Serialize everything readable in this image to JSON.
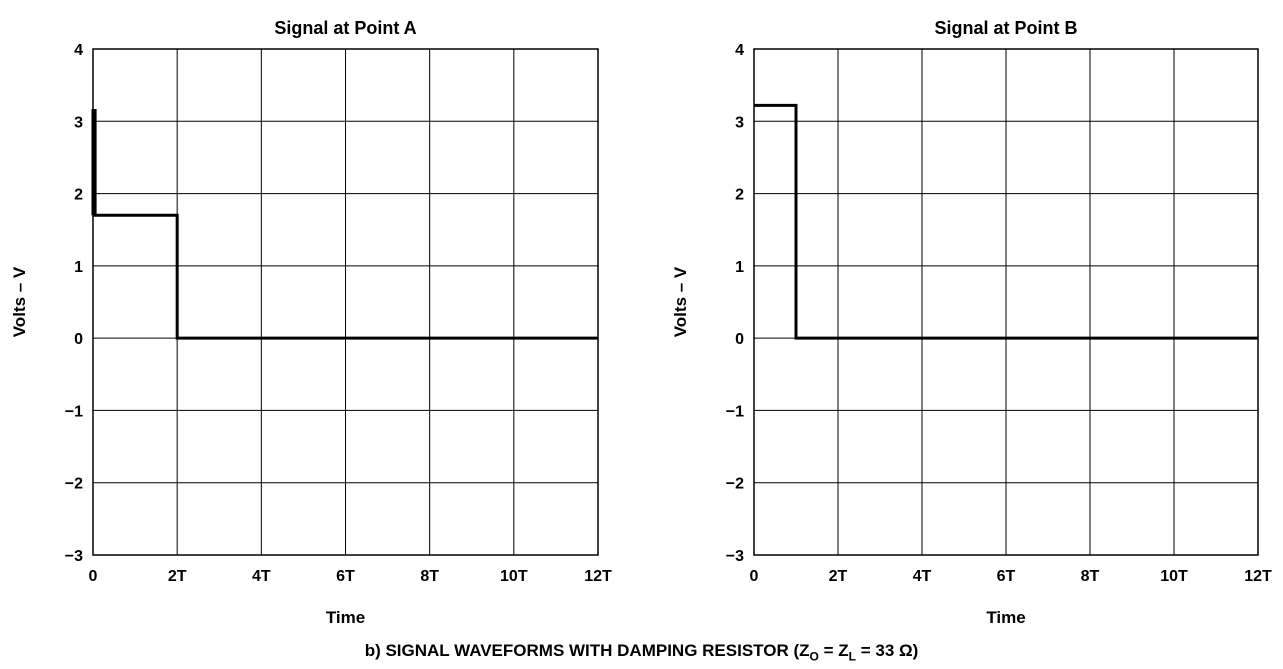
{
  "figure": {
    "caption_prefix": "b) SIGNAL WAVEFORMS WITH DAMPING RESISTOR (Z",
    "caption_sub1": "O",
    "caption_mid": " = Z",
    "caption_sub2": "L",
    "caption_suffix": " = 33 Ω)"
  },
  "chart_data": [
    {
      "type": "line",
      "title": "Signal at Point A",
      "xlabel": "Time",
      "ylabel": "Volts – V",
      "xlim": [
        0,
        12
      ],
      "ylim": [
        -3,
        4
      ],
      "x_ticks": [
        0,
        2,
        4,
        6,
        8,
        10,
        12
      ],
      "x_tick_labels": [
        "0",
        "2T",
        "4T",
        "6T",
        "8T",
        "10T",
        "12T"
      ],
      "y_ticks": [
        4,
        3,
        2,
        1,
        0,
        -1,
        -2,
        -3
      ],
      "y_tick_labels": [
        "4",
        "3",
        "2",
        "1",
        "0",
        "−1",
        "−2",
        "−3"
      ],
      "grid": true,
      "series": [
        {
          "color": "#000000",
          "x": [
            0,
            0,
            0.05,
            0.05,
            2,
            2,
            12
          ],
          "y": [
            1.7,
            3.15,
            3.15,
            1.7,
            1.7,
            0,
            0
          ]
        }
      ]
    },
    {
      "type": "line",
      "title": "Signal at Point B",
      "xlabel": "Time",
      "ylabel": "Volts – V",
      "xlim": [
        0,
        12
      ],
      "ylim": [
        -3,
        4
      ],
      "x_ticks": [
        0,
        2,
        4,
        6,
        8,
        10,
        12
      ],
      "x_tick_labels": [
        "0",
        "2T",
        "4T",
        "6T",
        "8T",
        "10T",
        "12T"
      ],
      "y_ticks": [
        4,
        3,
        2,
        1,
        0,
        -1,
        -2,
        -3
      ],
      "y_tick_labels": [
        "4",
        "3",
        "2",
        "1",
        "0",
        "−1",
        "−2",
        "−3"
      ],
      "grid": true,
      "series": [
        {
          "color": "#000000",
          "x": [
            0,
            1,
            1,
            12
          ],
          "y": [
            3.22,
            3.22,
            0,
            0
          ]
        }
      ]
    }
  ]
}
